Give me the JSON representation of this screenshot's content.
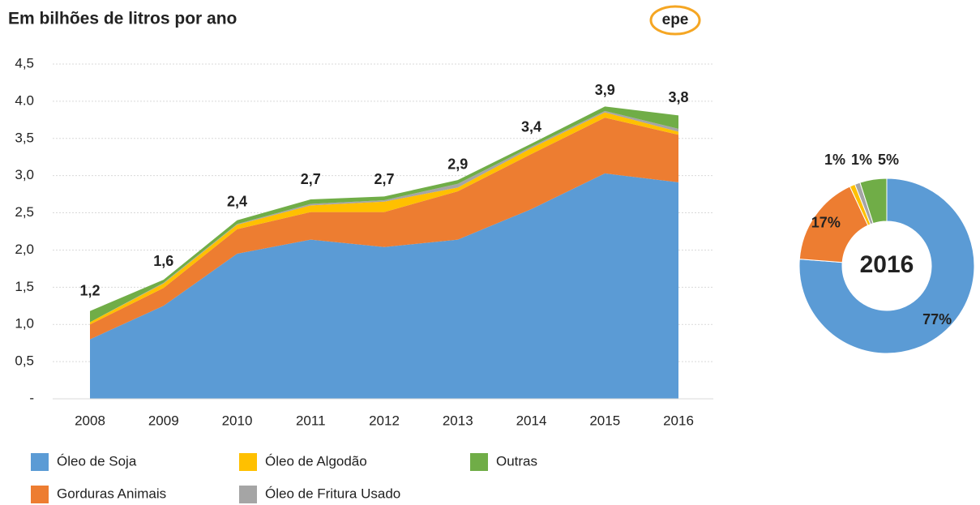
{
  "logo": "epe",
  "chart_data": [
    {
      "type": "stacked_area",
      "title": "Em bilhões de litros por ano",
      "categories": [
        "2008",
        "2009",
        "2010",
        "2011",
        "2012",
        "2013",
        "2014",
        "2015",
        "2016"
      ],
      "series": [
        {
          "name": "Óleo de Soja",
          "color": "#5b9bd5",
          "values": [
            0.8,
            1.25,
            1.95,
            2.14,
            2.04,
            2.14,
            2.55,
            3.03,
            2.91
          ]
        },
        {
          "name": "Gorduras Animais",
          "color": "#ed7d31",
          "values": [
            0.2,
            0.24,
            0.33,
            0.37,
            0.47,
            0.65,
            0.74,
            0.75,
            0.64
          ]
        },
        {
          "name": "Óleo de Algodão",
          "color": "#ffc000",
          "values": [
            0.03,
            0.06,
            0.06,
            0.09,
            0.14,
            0.05,
            0.08,
            0.07,
            0.04
          ]
        },
        {
          "name": "Óleo de Fritura Usado",
          "color": "#a5a5a5",
          "values": [
            0.0,
            0.01,
            0.01,
            0.02,
            0.02,
            0.05,
            0.02,
            0.02,
            0.04
          ]
        },
        {
          "name": "Outras",
          "color": "#70ad47",
          "values": [
            0.15,
            0.04,
            0.05,
            0.06,
            0.05,
            0.05,
            0.04,
            0.06,
            0.18
          ]
        }
      ],
      "totals": [
        1.2,
        1.6,
        2.4,
        2.7,
        2.7,
        2.9,
        3.4,
        3.9,
        3.8
      ],
      "total_labels": [
        "1,2",
        "1,6",
        "2,4",
        "2,7",
        "2,7",
        "2,9",
        "3,4",
        "3,9",
        "3,8"
      ],
      "ylim": [
        0,
        4.5
      ],
      "yticks": [
        {
          "value": 0,
          "label": "-"
        },
        {
          "value": 0.5,
          "label": "0,5"
        },
        {
          "value": 1,
          "label": "1,0"
        },
        {
          "value": 1.5,
          "label": "1,5"
        },
        {
          "value": 2,
          "label": "2,0"
        },
        {
          "value": 2.5,
          "label": "2,5"
        },
        {
          "value": 3,
          "label": "3,0"
        },
        {
          "value": 3.5,
          "label": "3,5"
        },
        {
          "value": 4,
          "label": "4.0"
        },
        {
          "value": 4.5,
          "label": "4,5"
        }
      ],
      "grid": true
    },
    {
      "type": "donut",
      "title": "2016",
      "values": [
        77,
        17,
        1,
        1,
        5
      ],
      "value_labels": [
        "77%",
        "17%",
        "1%",
        "1%",
        "5%"
      ],
      "colors": [
        "#5b9bd5",
        "#ed7d31",
        "#ffc000",
        "#a5a5a5",
        "#70ad47"
      ]
    }
  ]
}
